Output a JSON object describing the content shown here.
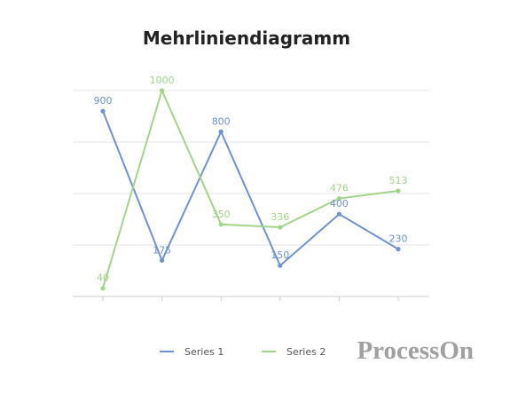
{
  "chart_data": {
    "type": "line",
    "title": "Mehrliniendiagramm",
    "xlabel": "",
    "ylabel": "",
    "ylim": [
      0,
      1000
    ],
    "grid": true,
    "legend_position": "bottom",
    "categories": [
      "",
      "",
      "",
      "",
      "",
      ""
    ],
    "series": [
      {
        "name": "Series 1",
        "color": "#6f93cf",
        "values": [
          900,
          175,
          800,
          150,
          400,
          230
        ]
      },
      {
        "name": "Series 2",
        "color": "#a2d48a",
        "values": [
          40,
          1000,
          350,
          336,
          476,
          513
        ]
      }
    ]
  },
  "watermark": "ProcessOn"
}
